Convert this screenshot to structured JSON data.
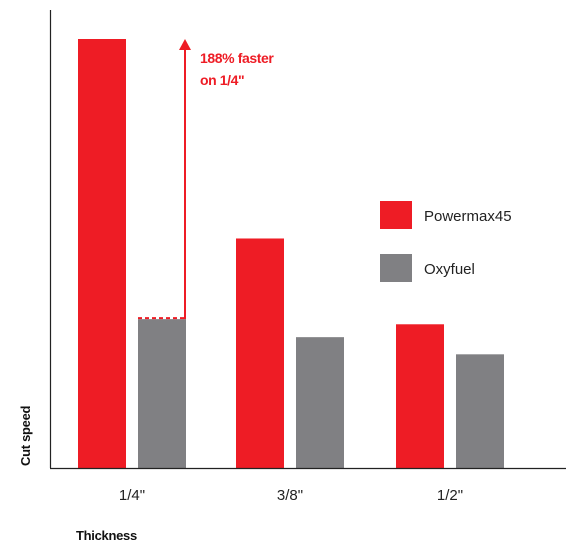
{
  "chart_data": {
    "type": "bar",
    "categories": [
      "1/4\"",
      "3/8\"",
      "1/2\""
    ],
    "series": [
      {
        "name": "Powermax45",
        "values": [
          100,
          53.5,
          33.5
        ],
        "color": "#ee1c25"
      },
      {
        "name": "Oxyfuel",
        "values": [
          34.7,
          30.5,
          26.5
        ],
        "color": "#808083"
      }
    ],
    "xlabel": "Thickness",
    "ylabel": "Cut speed",
    "ylim": [
      0,
      100
    ],
    "grid": false,
    "legend_position": "right",
    "annotation": {
      "line1": "188% faster",
      "line2": "on 1/4\"",
      "color": "#ee1c25"
    }
  }
}
